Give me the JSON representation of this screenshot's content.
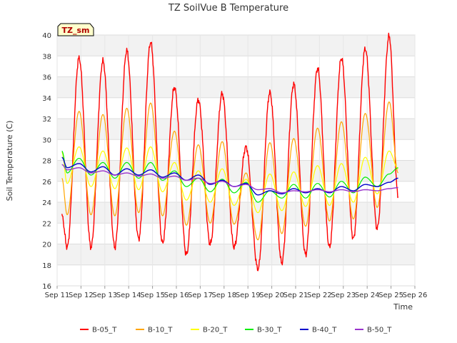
{
  "chart_data": {
    "type": "line",
    "title": "TZ SoilVue B Temperature",
    "xlabel": "Time",
    "ylabel": "Soil Temperature (C)",
    "site_badge": "TZ_sm",
    "ylim": [
      16,
      40
    ],
    "yticks": [
      16,
      18,
      20,
      22,
      24,
      26,
      28,
      30,
      32,
      34,
      36,
      38,
      40
    ],
    "xlim": [
      0,
      15
    ],
    "xticks": [
      0,
      1,
      2,
      3,
      4,
      5,
      6,
      7,
      8,
      9,
      10,
      11,
      12,
      13,
      14,
      15
    ],
    "xtick_labels": [
      "Sep 11",
      "Sep 12",
      "Sep 13",
      "Sep 14",
      "Sep 15",
      "Sep 16",
      "Sep 17",
      "Sep 18",
      "Sep 19",
      "Sep 20",
      "Sep 21",
      "Sep 22",
      "Sep 23",
      "Sep 24",
      "Sep 25",
      "Sep 26"
    ],
    "grid": true,
    "legend_position": "bottom",
    "days": [
      1,
      2,
      3,
      4,
      5,
      6,
      7,
      8,
      9,
      10,
      11,
      12,
      13,
      14
    ],
    "series": [
      {
        "name": "B-05_T",
        "color": "#ff0000",
        "width": 1.4,
        "start": 22.7,
        "end": 24.6,
        "min": [
          19.7,
          19.7,
          19.7,
          20.5,
          20.1,
          19.0,
          20.0,
          19.7,
          17.6,
          18.2,
          19.0,
          19.7,
          20.5,
          21.5
        ],
        "max": [
          37.8,
          37.5,
          38.5,
          39.3,
          35.0,
          33.8,
          34.4,
          29.3,
          34.5,
          35.3,
          36.8,
          37.8,
          38.7,
          39.9
        ]
      },
      {
        "name": "B-10_T",
        "color": "#ffa500",
        "width": 1.2,
        "start": 26.3,
        "end": 26.8,
        "min": [
          22.8,
          22.8,
          22.7,
          23.0,
          22.7,
          21.8,
          22.0,
          21.9,
          20.4,
          21.0,
          21.7,
          22.2,
          22.4,
          23.5
        ],
        "max": [
          32.7,
          32.4,
          33.0,
          33.5,
          30.8,
          29.5,
          29.8,
          26.8,
          29.7,
          30.1,
          31.1,
          31.7,
          32.5,
          33.6
        ]
      },
      {
        "name": "B-20_T",
        "color": "#ffff00",
        "width": 1.2,
        "start": 28.8,
        "end": 27.2,
        "min": [
          25.8,
          25.5,
          25.3,
          25.2,
          25.0,
          24.2,
          24.0,
          23.7,
          23.0,
          23.2,
          23.6,
          23.7,
          24.0,
          24.8
        ],
        "max": [
          29.3,
          28.9,
          29.2,
          29.3,
          27.8,
          27.0,
          27.2,
          26.2,
          26.7,
          26.9,
          27.5,
          27.7,
          28.3,
          28.9
        ]
      },
      {
        "name": "B-30_T",
        "color": "#00ee00",
        "width": 1.2,
        "start": 28.9,
        "end": 27.3,
        "min": [
          26.8,
          26.6,
          26.3,
          26.3,
          26.1,
          25.5,
          25.0,
          24.9,
          24.0,
          24.4,
          24.4,
          24.5,
          24.9,
          25.5
        ],
        "max": [
          28.2,
          27.8,
          27.8,
          27.8,
          27.0,
          26.3,
          26.2,
          25.9,
          25.1,
          25.7,
          25.8,
          26.0,
          26.4,
          26.7
        ]
      },
      {
        "name": "B-40_T",
        "color": "#0000cc",
        "width": 1.4,
        "start": 28.3,
        "end": 26.3,
        "min": [
          27.3,
          26.9,
          26.6,
          26.6,
          26.4,
          26.1,
          25.7,
          25.5,
          24.7,
          24.8,
          24.9,
          24.9,
          25.1,
          25.5
        ],
        "max": [
          27.7,
          27.4,
          27.2,
          27.1,
          26.8,
          26.6,
          26.1,
          25.8,
          25.1,
          25.3,
          25.3,
          25.5,
          25.7,
          25.9
        ]
      },
      {
        "name": "B-50_T",
        "color": "#9933cc",
        "width": 1.4,
        "start": 27.6,
        "end": 25.4,
        "min": [
          27.1,
          26.8,
          26.6,
          26.5,
          26.3,
          26.1,
          25.8,
          25.5,
          25.2,
          24.9,
          25.0,
          25.0,
          25.0,
          25.1
        ],
        "max": [
          27.3,
          27.0,
          26.8,
          26.7,
          26.5,
          26.3,
          26.0,
          25.7,
          25.3,
          25.1,
          25.2,
          25.2,
          25.2,
          25.3
        ]
      }
    ]
  }
}
